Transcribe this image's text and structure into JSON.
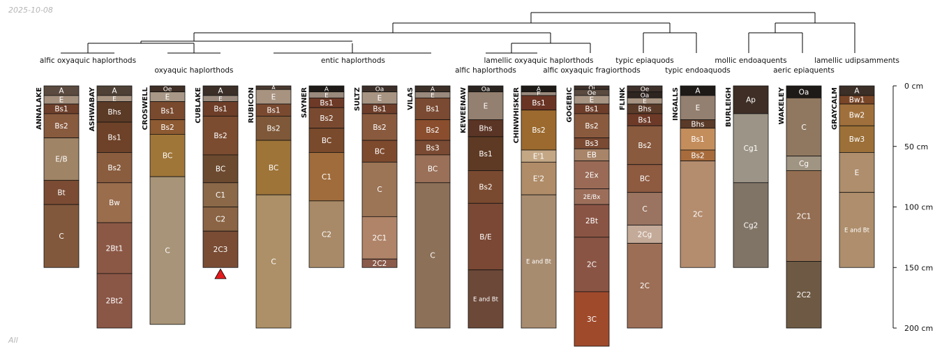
{
  "stamp_date": "2025-10-08",
  "footer_text": "All",
  "colors": {
    "outline": "#111111",
    "dendrogram": "#000000",
    "marker": "#e31a1c"
  },
  "depth_axis": {
    "ticks": [
      0,
      50,
      100,
      150,
      200
    ],
    "tick_labels": [
      "0 cm",
      "50 cm",
      "100 cm",
      "150 cm",
      "200 cm"
    ],
    "max": 200
  },
  "taxa": [
    {
      "label": "alfic oxyaquic haplorthods",
      "line": 1,
      "members": [
        0,
        1
      ]
    },
    {
      "label": "oxyaquic haplorthods",
      "line": 2,
      "members": [
        2,
        3
      ]
    },
    {
      "label": "entic haplorthods",
      "line": 1,
      "members": [
        4,
        5,
        6,
        7
      ]
    },
    {
      "label": "alfic haplorthods",
      "line": 2,
      "members": [
        8
      ]
    },
    {
      "label": "lamellic oxyaquic haplorthods",
      "line": 1,
      "members": [
        9
      ]
    },
    {
      "label": "alfic oxyaquic fragiorthods",
      "line": 2,
      "members": [
        10
      ]
    },
    {
      "label": "typic epiaquods",
      "line": 1,
      "members": [
        11
      ]
    },
    {
      "label": "typic endoaquods",
      "line": 2,
      "members": [
        12
      ]
    },
    {
      "label": "mollic endoaquents",
      "line": 1,
      "members": [
        13
      ]
    },
    {
      "label": "aeric epiaquents",
      "line": 2,
      "members": [
        14
      ]
    },
    {
      "label": "lamellic udipsamments",
      "line": 1,
      "members": [
        15
      ]
    }
  ],
  "profiles": [
    {
      "name": "ANNALAKE",
      "horizons": [
        [
          "A",
          0,
          8,
          "#5b4a3f"
        ],
        [
          "E",
          8,
          15,
          "#a58f7d"
        ],
        [
          "Bs1",
          15,
          23,
          "#6e3f2a"
        ],
        [
          "Bs2",
          23,
          43,
          "#885a3e"
        ],
        [
          "E/B",
          43,
          78,
          "#a08466"
        ],
        [
          "Bt",
          78,
          98,
          "#7b4c33"
        ],
        [
          "C",
          98,
          150,
          "#82583c"
        ]
      ]
    },
    {
      "name": "ASHWABAY",
      "horizons": [
        [
          "A",
          0,
          8,
          "#4f4136"
        ],
        [
          "E",
          8,
          13,
          "#a89482"
        ],
        [
          "Bhs",
          13,
          30,
          "#5b3a26"
        ],
        [
          "Bs1",
          30,
          55,
          "#6e4228"
        ],
        [
          "Bs2",
          55,
          80,
          "#8a5d3f"
        ],
        [
          "Bw",
          80,
          113,
          "#9a6d4d"
        ],
        [
          "2Bt1",
          113,
          155,
          "#8c5846"
        ],
        [
          "2Bt2",
          155,
          200,
          "#8a5646"
        ]
      ]
    },
    {
      "name": "CROSWELL",
      "horizons": [
        [
          "Oe",
          0,
          5,
          "#3f2f26"
        ],
        [
          "E",
          5,
          13,
          "#a99887"
        ],
        [
          "Bs1",
          13,
          28,
          "#7a4a2e"
        ],
        [
          "Bs2",
          28,
          40,
          "#8d5a32"
        ],
        [
          "BC",
          40,
          75,
          "#a07638"
        ],
        [
          "C",
          75,
          197,
          "#a89478"
        ]
      ]
    },
    {
      "name": "CUBLAKE",
      "horizons": [
        [
          "A",
          0,
          8,
          "#3b2f28"
        ],
        [
          "E",
          8,
          13,
          "#9a8a7d"
        ],
        [
          "Bs1",
          13,
          25,
          "#6e3e28"
        ],
        [
          "Bs2",
          25,
          57,
          "#7c4c30"
        ],
        [
          "BC",
          57,
          80,
          "#6c4a30"
        ],
        [
          "C1",
          80,
          100,
          "#8a6848"
        ],
        [
          "C2",
          100,
          120,
          "#8a6444"
        ],
        [
          "2C3",
          120,
          150,
          "#7a4c34"
        ]
      ]
    },
    {
      "name": "RUBICON",
      "horizons": [
        [
          "A",
          0,
          3,
          "#4a3a30"
        ],
        [
          "E",
          3,
          15,
          "#a89380"
        ],
        [
          "Bs1",
          15,
          25,
          "#7a4a30"
        ],
        [
          "Bs2",
          25,
          45,
          "#7e5838"
        ],
        [
          "BC",
          45,
          90,
          "#9e7438"
        ],
        [
          "C",
          90,
          200,
          "#ad9068"
        ]
      ]
    },
    {
      "name": "SAYNER",
      "horizons": [
        [
          "A",
          0,
          5,
          "#1e1a18"
        ],
        [
          "E",
          5,
          10,
          "#9a8a7d"
        ],
        [
          "Bs1",
          10,
          18,
          "#6e3a28"
        ],
        [
          "Bs2",
          18,
          35,
          "#7a4a30"
        ],
        [
          "BC",
          35,
          55,
          "#7a4a2c"
        ],
        [
          "C1",
          55,
          95,
          "#a06c3c"
        ],
        [
          "C2",
          95,
          150,
          "#a88a68"
        ]
      ]
    },
    {
      "name": "SULTZ",
      "horizons": [
        [
          "Oa",
          0,
          5,
          "#3b2e28"
        ],
        [
          "E",
          5,
          15,
          "#a89482"
        ],
        [
          "Bs1",
          15,
          23,
          "#6e3e2a"
        ],
        [
          "Bs2",
          23,
          45,
          "#8a5a3e"
        ],
        [
          "BC",
          45,
          63,
          "#7e4a2e"
        ],
        [
          "C",
          63,
          108,
          "#9c7456"
        ],
        [
          "2C1",
          108,
          143,
          "#b08468"
        ],
        [
          "2C2",
          143,
          150,
          "#8a5a4a"
        ]
      ]
    },
    {
      "name": "VILAS",
      "horizons": [
        [
          "A",
          0,
          5,
          "#3b2f28"
        ],
        [
          "E",
          5,
          10,
          "#9a8a7d"
        ],
        [
          "Bs1",
          10,
          28,
          "#7a4a32"
        ],
        [
          "Bs2",
          28,
          45,
          "#8a4e2e"
        ],
        [
          "Bs3",
          45,
          57,
          "#7a4a32"
        ],
        [
          "BC",
          57,
          80,
          "#9a7058"
        ],
        [
          "C",
          80,
          200,
          "#8c7058"
        ]
      ]
    },
    {
      "name": "KEWEENAW",
      "horizons": [
        [
          "Oa",
          0,
          5,
          "#2a2420"
        ],
        [
          "E",
          5,
          28,
          "#948070"
        ],
        [
          "Bhs",
          28,
          42,
          "#5a3424"
        ],
        [
          "Bs1",
          42,
          70,
          "#5e3a24"
        ],
        [
          "Bs2",
          70,
          97,
          "#7a4a30"
        ],
        [
          "B/E",
          97,
          152,
          "#7a4834"
        ],
        [
          "E and Bt",
          152,
          200,
          "#6c4838"
        ]
      ]
    },
    {
      "name": "CHINWHISKER",
      "horizons": [
        [
          "A",
          0,
          5,
          "#1e1a18"
        ],
        [
          "E",
          5,
          8,
          "#9a8a7d"
        ],
        [
          "Bs1",
          8,
          20,
          "#6a3424"
        ],
        [
          "Bs2",
          20,
          53,
          "#9c6a2e"
        ],
        [
          "E'1",
          53,
          63,
          "#c4a886"
        ],
        [
          "E'2",
          63,
          90,
          "#b08c68"
        ],
        [
          "E and Bt",
          90,
          200,
          "#a88c70"
        ]
      ]
    },
    {
      "name": "GOGEBIC",
      "horizons": [
        [
          "Oi",
          0,
          3,
          "#3e302a"
        ],
        [
          "Oe",
          3,
          8,
          "#5a4a40"
        ],
        [
          "E",
          8,
          15,
          "#a89482"
        ],
        [
          "Bs1",
          15,
          23,
          "#6e3e2a"
        ],
        [
          "Bs2",
          23,
          43,
          "#8a5a3e"
        ],
        [
          "Bs3",
          43,
          52,
          "#7a4a32"
        ],
        [
          "EB",
          52,
          62,
          "#a88468"
        ],
        [
          "2Ex",
          62,
          85,
          "#9a6a56"
        ],
        [
          "2E/Bx",
          85,
          98,
          "#9c6e5a"
        ],
        [
          "2Bt",
          98,
          125,
          "#8a5444"
        ],
        [
          "2C",
          125,
          170,
          "#8a5444"
        ],
        [
          "3C",
          170,
          215,
          "#a04a2c"
        ]
      ]
    },
    {
      "name": "FLINK",
      "horizons": [
        [
          "Oe",
          0,
          5,
          "#3e302a"
        ],
        [
          "Oa",
          5,
          10,
          "#2e2420"
        ],
        [
          "E",
          10,
          15,
          "#a89482"
        ],
        [
          "Bhs",
          15,
          23,
          "#5a3a28"
        ],
        [
          "Bs1",
          23,
          33,
          "#6e3a28"
        ],
        [
          "Bs2",
          33,
          65,
          "#8a5a3e"
        ],
        [
          "BC",
          65,
          88,
          "#8e5a40"
        ],
        [
          "C",
          88,
          115,
          "#9a7460"
        ],
        [
          "2Cg",
          115,
          130,
          "#c4aa98"
        ],
        [
          "2C",
          130,
          200,
          "#9c6e56"
        ]
      ]
    },
    {
      "name": "INGALLS",
      "horizons": [
        [
          "A",
          0,
          8,
          "#1e1a18"
        ],
        [
          "E",
          8,
          28,
          "#948070"
        ],
        [
          "Bhs",
          28,
          35,
          "#5a3a28"
        ],
        [
          "Bs1",
          35,
          53,
          "#c48e5c"
        ],
        [
          "Bs2",
          53,
          62,
          "#a86c3c"
        ],
        [
          "2C",
          62,
          150,
          "#b48c6e"
        ]
      ]
    },
    {
      "name": "BURLEIGH",
      "horizons": [
        [
          "Ap",
          0,
          23,
          "#3e2e26"
        ],
        [
          "Cg1",
          23,
          80,
          "#9c9486"
        ],
        [
          "Cg2",
          80,
          150,
          "#807466"
        ]
      ]
    },
    {
      "name": "WAKELEY",
      "horizons": [
        [
          "Oa",
          0,
          10,
          "#1e1a18"
        ],
        [
          "C",
          10,
          58,
          "#907860"
        ],
        [
          "Cg",
          58,
          70,
          "#a09482"
        ],
        [
          "2C1",
          70,
          145,
          "#946e52"
        ],
        [
          "2C2",
          145,
          200,
          "#6e5a44"
        ]
      ]
    },
    {
      "name": "GRAYCALM",
      "horizons": [
        [
          "A",
          0,
          8,
          "#3b2f28"
        ],
        [
          "Bw1",
          8,
          15,
          "#7a4628"
        ],
        [
          "Bw2",
          15,
          33,
          "#a0703c"
        ],
        [
          "Bw3",
          33,
          55,
          "#9c7038"
        ],
        [
          "E",
          55,
          88,
          "#ae8e6c"
        ],
        [
          "E and Bt",
          88,
          150,
          "#ae8e6c"
        ]
      ]
    }
  ],
  "markers": [
    {
      "profile": 3,
      "depth": 150,
      "shape": "triangle"
    }
  ]
}
